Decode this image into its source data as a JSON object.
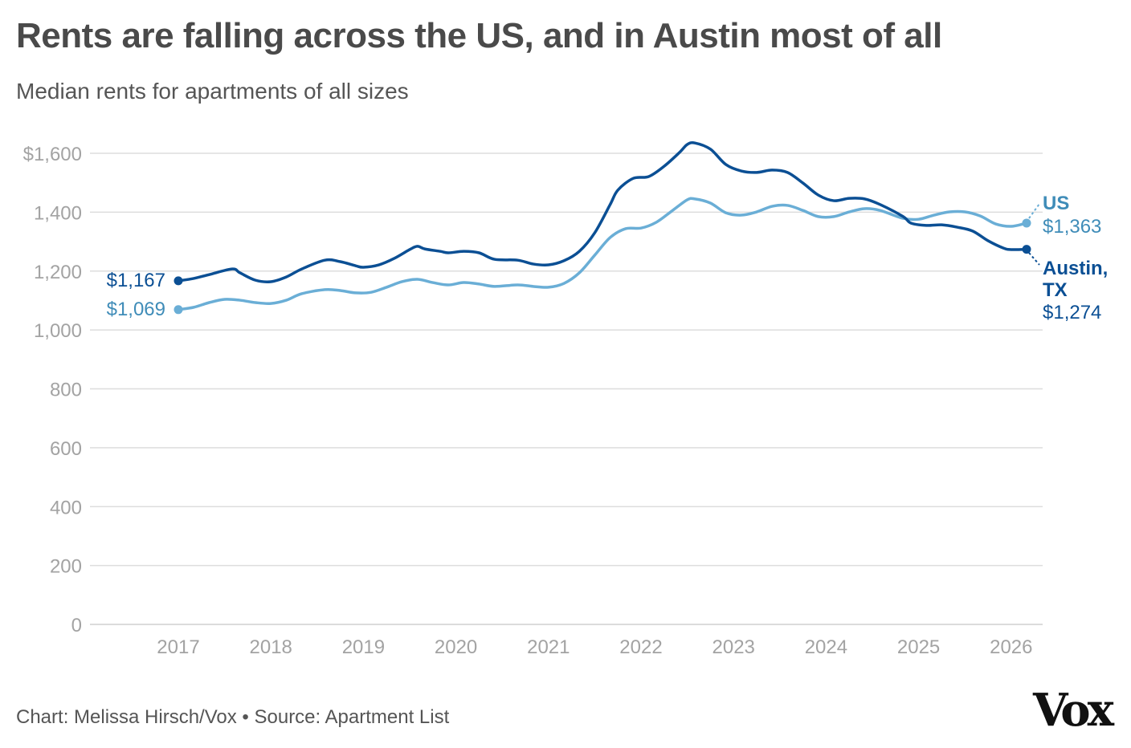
{
  "chart_data": {
    "type": "line",
    "title": "Rents are falling across the US, and in Austin most of all",
    "subtitle": "Median rents for apartments of all sizes",
    "xlabel": "",
    "ylabel": "",
    "ylim": [
      0,
      1600
    ],
    "xlim": [
      "2016-03",
      "2026-04"
    ],
    "grid": true,
    "y_ticks": [
      "$1,600",
      "1,400",
      "1,200",
      "1,000",
      "800",
      "600",
      "400",
      "200",
      "0"
    ],
    "y_tick_values": [
      1600,
      1400,
      1200,
      1000,
      800,
      600,
      400,
      200,
      0
    ],
    "x_ticks": [
      "2017",
      "2018",
      "2019",
      "2020",
      "2021",
      "2022",
      "2023",
      "2024",
      "2025",
      "2026"
    ],
    "series": [
      {
        "name": "Austin, TX",
        "color": "#0b4f94",
        "start_label": "$1,167",
        "end_label": "$1,274",
        "points": [
          [
            "2017-01",
            1167
          ],
          [
            "2017-03",
            1175
          ],
          [
            "2017-05",
            1188
          ],
          [
            "2017-08",
            1207
          ],
          [
            "2017-09",
            1194
          ],
          [
            "2017-11",
            1169
          ],
          [
            "2018-01",
            1164
          ],
          [
            "2018-03",
            1180
          ],
          [
            "2018-05",
            1207
          ],
          [
            "2018-08",
            1237
          ],
          [
            "2018-10",
            1232
          ],
          [
            "2018-12",
            1218
          ],
          [
            "2019-01",
            1213
          ],
          [
            "2019-03",
            1221
          ],
          [
            "2019-05",
            1243
          ],
          [
            "2019-07",
            1273
          ],
          [
            "2019-08",
            1284
          ],
          [
            "2019-09",
            1275
          ],
          [
            "2019-11",
            1267
          ],
          [
            "2019-12",
            1262
          ],
          [
            "2020-02",
            1267
          ],
          [
            "2020-04",
            1262
          ],
          [
            "2020-06",
            1240
          ],
          [
            "2020-09",
            1237
          ],
          [
            "2020-11",
            1224
          ],
          [
            "2021-01",
            1221
          ],
          [
            "2021-03",
            1235
          ],
          [
            "2021-05",
            1267
          ],
          [
            "2021-07",
            1330
          ],
          [
            "2021-09",
            1426
          ],
          [
            "2021-10",
            1475
          ],
          [
            "2021-12",
            1515
          ],
          [
            "2022-02",
            1521
          ],
          [
            "2022-04",
            1556
          ],
          [
            "2022-06",
            1603
          ],
          [
            "2022-07",
            1630
          ],
          [
            "2022-08",
            1635
          ],
          [
            "2022-10",
            1614
          ],
          [
            "2022-12",
            1562
          ],
          [
            "2023-02",
            1540
          ],
          [
            "2023-04",
            1535
          ],
          [
            "2023-06",
            1543
          ],
          [
            "2023-08",
            1535
          ],
          [
            "2023-10",
            1499
          ],
          [
            "2023-12",
            1458
          ],
          [
            "2024-02",
            1439
          ],
          [
            "2024-04",
            1447
          ],
          [
            "2024-06",
            1445
          ],
          [
            "2024-08",
            1426
          ],
          [
            "2024-11",
            1385
          ],
          [
            "2024-12",
            1363
          ],
          [
            "2025-02",
            1355
          ],
          [
            "2025-04",
            1357
          ],
          [
            "2025-06",
            1349
          ],
          [
            "2025-08",
            1336
          ],
          [
            "2025-10",
            1303
          ],
          [
            "2025-12",
            1278
          ],
          [
            "2026-01",
            1273
          ],
          [
            "2026-03",
            1274
          ]
        ]
      },
      {
        "name": "US",
        "color": "#6aaed6",
        "start_label": "$1,069",
        "end_label": "$1,363",
        "points": [
          [
            "2017-01",
            1069
          ],
          [
            "2017-03",
            1077
          ],
          [
            "2017-05",
            1093
          ],
          [
            "2017-07",
            1104
          ],
          [
            "2017-09",
            1101
          ],
          [
            "2017-11",
            1093
          ],
          [
            "2018-01",
            1090
          ],
          [
            "2018-03",
            1101
          ],
          [
            "2018-05",
            1123
          ],
          [
            "2018-08",
            1137
          ],
          [
            "2018-10",
            1134
          ],
          [
            "2018-12",
            1126
          ],
          [
            "2019-02",
            1128
          ],
          [
            "2019-04",
            1145
          ],
          [
            "2019-06",
            1164
          ],
          [
            "2019-08",
            1172
          ],
          [
            "2019-10",
            1161
          ],
          [
            "2019-12",
            1153
          ],
          [
            "2020-02",
            1161
          ],
          [
            "2020-04",
            1156
          ],
          [
            "2020-06",
            1148
          ],
          [
            "2020-09",
            1153
          ],
          [
            "2020-11",
            1148
          ],
          [
            "2021-01",
            1145
          ],
          [
            "2021-03",
            1158
          ],
          [
            "2021-05",
            1194
          ],
          [
            "2021-07",
            1254
          ],
          [
            "2021-09",
            1314
          ],
          [
            "2021-11",
            1344
          ],
          [
            "2022-01",
            1346
          ],
          [
            "2022-03",
            1366
          ],
          [
            "2022-05",
            1404
          ],
          [
            "2022-07",
            1442
          ],
          [
            "2022-08",
            1445
          ],
          [
            "2022-10",
            1431
          ],
          [
            "2022-12",
            1398
          ],
          [
            "2023-02",
            1390
          ],
          [
            "2023-04",
            1401
          ],
          [
            "2023-06",
            1420
          ],
          [
            "2023-08",
            1423
          ],
          [
            "2023-10",
            1406
          ],
          [
            "2023-12",
            1385
          ],
          [
            "2024-02",
            1385
          ],
          [
            "2024-04",
            1401
          ],
          [
            "2024-06",
            1412
          ],
          [
            "2024-08",
            1406
          ],
          [
            "2024-11",
            1379
          ],
          [
            "2025-01",
            1376
          ],
          [
            "2025-03",
            1390
          ],
          [
            "2025-05",
            1401
          ],
          [
            "2025-07",
            1401
          ],
          [
            "2025-09",
            1387
          ],
          [
            "2025-11",
            1360
          ],
          [
            "2026-01",
            1352
          ],
          [
            "2026-03",
            1363
          ]
        ]
      }
    ]
  },
  "labels": {
    "us_name": "US",
    "austin_name_line1": "Austin,",
    "austin_name_line2": "TX"
  },
  "colors": {
    "austin_label": "#0b4f94",
    "us_label": "#3f8cb8",
    "grid": "#dddddd",
    "tick_text": "#a3a3a3"
  },
  "footer": {
    "credit": "Chart: Melissa Hirsch/Vox • Source: Apartment List",
    "logo": "Vox"
  }
}
